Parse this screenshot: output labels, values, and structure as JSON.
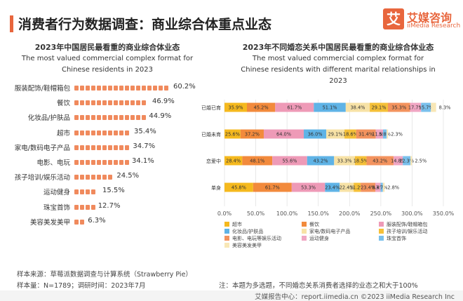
{
  "header": {
    "title": "消费者行为数据调查：商业综合体重点业态",
    "brand_logo": "艾",
    "brand_name": "艾媒咨询",
    "brand_sub": "iiMedia Research"
  },
  "chart_data": [
    {
      "type": "bar",
      "orientation": "horizontal",
      "title": "2023年中国居民最看重的商业综合体业态",
      "subtitle": "The most valued commercial complex format for Chinese residents in 2023",
      "categories": [
        "服装配饰/鞋帽箱包",
        "餐饮",
        "化妆品/护肤品",
        "超市",
        "家电/数码电子产品",
        "电影、电玩",
        "孩子培训/娱乐活动",
        "运动健身",
        "珠宝首饰",
        "美容美发美甲"
      ],
      "values": [
        60.2,
        46.9,
        44.9,
        35.4,
        34.7,
        34.1,
        24.5,
        15.5,
        12.7,
        6.3
      ],
      "value_labels": [
        "60.2%",
        "46.9%",
        "44.9%",
        "35.4%",
        "34.7%",
        "34.1%",
        "24.5%",
        "15.5%",
        "12.7%",
        "6.3%"
      ],
      "xlim": [
        0,
        60.2
      ],
      "color": "#f08a5d"
    },
    {
      "type": "bar",
      "orientation": "horizontal",
      "stacked": true,
      "title": "2023年不同婚恋关系中国居民最看重的商业综合体业态",
      "subtitle": "The most valued commercial complex format for Chinese residents with different marital relationships in 2023",
      "categories": [
        "已婚已育",
        "已婚未育",
        "恋爱中",
        "单身"
      ],
      "xlim": [
        0,
        350
      ],
      "xticks": [
        "0.0%",
        "50.0%",
        "100.0%",
        "150.0%",
        "200.0%",
        "250.0%",
        "300.0%",
        "350.0%"
      ],
      "grid": true,
      "legend_position": "bottom",
      "series": [
        {
          "name": "超市",
          "color": "#f5b91e",
          "values": [
            35.9,
            25.6,
            28.4,
            45.8
          ]
        },
        {
          "name": "餐饮",
          "color": "#f28a3c",
          "values": [
            45.2,
            37.2,
            48.1,
            61.7
          ]
        },
        {
          "name": "服装配饰/鞋帽箱包",
          "color": "#ee9ab7",
          "values": [
            61.7,
            64.0,
            55.6,
            53.3
          ]
        },
        {
          "name": "化妆品/护肤品",
          "color": "#5fb3e6",
          "values": [
            51.1,
            36.0,
            43.2,
            23.4
          ]
        },
        {
          "name": "家电/数码电子产品",
          "color": "#f7e2a6",
          "values": [
            38.4,
            29.1,
            33.3,
            22.4
          ]
        },
        {
          "name": "孩子培训/娱乐活动",
          "color": "#f5c038",
          "values": [
            29.1,
            18.6,
            18.5,
            11.2
          ]
        },
        {
          "name": "电影、电玩等娱乐活动",
          "color": "#f3935e",
          "values": [
            35.3,
            31.4,
            43.2,
            23.4
          ]
        },
        {
          "name": "运动健身",
          "color": "#f0a6c3",
          "values": [
            17.7,
            11.6,
            14.8,
            8.4
          ]
        },
        {
          "name": "珠宝首饰",
          "color": "#79c0ec",
          "values": [
            15.7,
            5.8,
            12.3,
            3.7
          ]
        },
        {
          "name": "美容美发美甲",
          "color": "#f8e7b6",
          "values": [
            8.3,
            2.3,
            2.5,
            2.8
          ]
        }
      ],
      "labels": [
        [
          "35.9%",
          "45.2%",
          "61.7%",
          "51.1%",
          "38.4%",
          "29.1%",
          "35.3%",
          "17.7%",
          "15.7%",
          "8.3%"
        ],
        [
          "25.6%",
          "37.2%",
          "64.0%",
          "36.0%",
          "29.1%",
          "18.6%",
          "31.4%",
          "11.6%",
          "5.8%",
          "2.3%"
        ],
        [
          "28.4%",
          "48.1%",
          "55.6%",
          "43.2%",
          "33.3%",
          "18.5%",
          "43.2%",
          "14.8%",
          "12.3%",
          "2.5%"
        ],
        [
          "45.8%",
          "61.7%",
          "53.3%",
          "23.4%",
          "22.4%",
          "11.2%",
          "23.4%",
          "8.4%",
          "3.7%",
          "2.8%"
        ]
      ]
    }
  ],
  "footer": {
    "source": "样本来源：草莓派数据调查与计算系统（Strawberry Pie）",
    "sample": "样本量：N=1789；调研时间：2023年7月",
    "note": "注：本题为多选题，不同婚恋关系消费者选择的业态之和大于100%",
    "copyright": "艾媒报告中心：report.iimedia.cn   ©2023  iiMedia Research  Inc"
  }
}
